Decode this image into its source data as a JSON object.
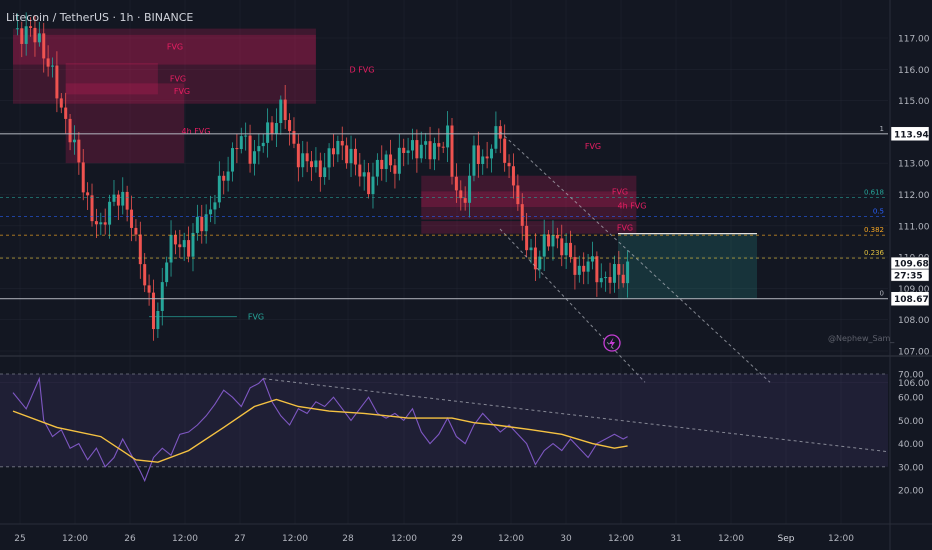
{
  "header": {
    "title": "Litecoin / TetherUS · 1h · BINANCE"
  },
  "watermark": "@Nephew_Sam_",
  "colors": {
    "bg": "#131722",
    "up": "#26a69a",
    "down": "#ef5350",
    "fvg_bear": "#e91e63",
    "fvg_bull": "#26a69a",
    "rsi": "#7e57c2",
    "rsi_ma": "#f5c242",
    "grid": "#2a2e39",
    "text": "#b2b5be",
    "fib": "#b2b5be"
  },
  "icons": {
    "alert": "lightning-icon"
  },
  "chart_data": [
    {
      "type": "candlestick",
      "name": "price",
      "ylim": [
        105.7,
        117.5
      ],
      "y_ticks": [
        "117.00",
        "116.00",
        "115.00",
        "114.00",
        "113.00",
        "112.00",
        "111.00",
        "110.00",
        "109.00",
        "108.00",
        "107.00",
        "106.00"
      ],
      "x_ticks": [
        "25",
        "12:00",
        "26",
        "12:00",
        "27",
        "12:00",
        "28",
        "12:00",
        "29",
        "12:00",
        "30",
        "12:00",
        "31",
        "12:00",
        "Sep",
        "12:00"
      ],
      "price_labels": [
        "113.94",
        "109.68",
        "27:35",
        "108.67"
      ],
      "close_path": [
        [
          0,
          117.3
        ],
        [
          6,
          117.0
        ],
        [
          8,
          116.2
        ],
        [
          10,
          115.2
        ],
        [
          13,
          114.0
        ],
        [
          16,
          112.3
        ],
        [
          18,
          111.4
        ],
        [
          20,
          110.7
        ],
        [
          22,
          111.8
        ],
        [
          23,
          112.0
        ],
        [
          24,
          111.9
        ],
        [
          25,
          111.7
        ],
        [
          27,
          111.2
        ],
        [
          29,
          110.0
        ],
        [
          30,
          109.0
        ],
        [
          31,
          108.5
        ],
        [
          32,
          108.0
        ],
        [
          33,
          108.3
        ],
        [
          34,
          109.2
        ],
        [
          35,
          110.0
        ],
        [
          36,
          110.3
        ],
        [
          38,
          110.6
        ],
        [
          40,
          110.2
        ],
        [
          41,
          110.6
        ],
        [
          42,
          111.0
        ],
        [
          43,
          111.2
        ],
        [
          45,
          111.5
        ],
        [
          47,
          112.2
        ],
        [
          49,
          113.0
        ],
        [
          51,
          113.6
        ],
        [
          53,
          113.7
        ],
        [
          54,
          113.4
        ],
        [
          55,
          113.3
        ],
        [
          57,
          113.7
        ],
        [
          59,
          114.2
        ],
        [
          61,
          114.8
        ],
        [
          62,
          114.5
        ],
        [
          63,
          113.8
        ],
        [
          65,
          113.3
        ],
        [
          67,
          113.0
        ],
        [
          69,
          112.8
        ],
        [
          71,
          113.0
        ],
        [
          73,
          113.4
        ],
        [
          75,
          113.6
        ],
        [
          77,
          113.2
        ],
        [
          79,
          112.6
        ],
        [
          81,
          112.4
        ],
        [
          83,
          112.8
        ],
        [
          85,
          113.1
        ],
        [
          87,
          113.0
        ],
        [
          89,
          113.3
        ],
        [
          91,
          113.6
        ],
        [
          93,
          113.5
        ],
        [
          95,
          113.3
        ],
        [
          97,
          113.7
        ],
        [
          99,
          113.8
        ],
        [
          100,
          112.6
        ],
        [
          102,
          111.8
        ],
        [
          104,
          112.4
        ],
        [
          105,
          113.3
        ],
        [
          107,
          113.1
        ],
        [
          109,
          113.6
        ],
        [
          111,
          113.9
        ],
        [
          112,
          113.1
        ],
        [
          114,
          112.6
        ],
        [
          115,
          111.4
        ],
        [
          116,
          110.8
        ],
        [
          118,
          110.2
        ],
        [
          119,
          109.8
        ],
        [
          121,
          110.3
        ],
        [
          123,
          110.8
        ],
        [
          125,
          110.3
        ],
        [
          127,
          109.9
        ],
        [
          129,
          109.6
        ],
        [
          131,
          109.8
        ],
        [
          133,
          109.5
        ],
        [
          135,
          109.3
        ],
        [
          137,
          109.4
        ],
        [
          139,
          109.5
        ],
        [
          140,
          109.7
        ]
      ],
      "fvg_zones": [
        {
          "label": "FVG",
          "x": [
            0,
            69
          ],
          "y": [
            116.15,
            117.3
          ],
          "kind": "bear"
        },
        {
          "label": "FVG",
          "x": [
            12,
            33
          ],
          "y": [
            115.2,
            116.2
          ],
          "kind": "bear"
        },
        {
          "label": "FVG",
          "x": [
            12,
            39
          ],
          "y": [
            115.05,
            115.55
          ],
          "kind": "bear"
        },
        {
          "label": "4h FVG",
          "x": [
            12,
            39
          ],
          "y": [
            113.0,
            115.05
          ],
          "kind": "bear"
        },
        {
          "label": "D FVG",
          "x": [
            0,
            69
          ],
          "y": [
            114.9,
            117.1
          ],
          "kind": "bear"
        },
        {
          "label": "FVG",
          "x": [
            93,
            113
          ],
          "y": [
            113.1,
            114.0
          ],
          "kind": "bear-label"
        },
        {
          "label": "FVG",
          "x": [
            93,
            142
          ],
          "y": [
            111.6,
            112.6
          ],
          "kind": "bear"
        },
        {
          "label": "4h FVG",
          "x": [
            93,
            142
          ],
          "y": [
            111.2,
            112.1
          ],
          "kind": "bear"
        },
        {
          "label": "FVG",
          "x": [
            93,
            142
          ],
          "y": [
            110.75,
            111.15
          ],
          "kind": "bear"
        },
        {
          "label": "FVG",
          "x": [
            31,
            51
          ],
          "y": [
            108.1,
            108.1
          ],
          "kind": "bull"
        }
      ],
      "fib": [
        {
          "ratio": "1",
          "price": 113.94
        },
        {
          "ratio": "0.618",
          "price": 111.9
        },
        {
          "ratio": "0.5",
          "price": 111.3
        },
        {
          "ratio": "0.382",
          "price": 110.7
        },
        {
          "ratio": "0.236",
          "price": 109.97
        },
        {
          "ratio": "0",
          "price": 108.67
        }
      ],
      "position_box": {
        "entry": 110.75,
        "target": 108.67,
        "stop": 110.75
      }
    },
    {
      "type": "line",
      "name": "RSI",
      "ylim": [
        17,
        73
      ],
      "y_ticks": [
        "70.00",
        "60.00",
        "50.00",
        "40.00",
        "30.00",
        "20.00"
      ],
      "bands": [
        70,
        30
      ],
      "rsi": [
        [
          0,
          62
        ],
        [
          3,
          55
        ],
        [
          6,
          68
        ],
        [
          7,
          50
        ],
        [
          9,
          43
        ],
        [
          11,
          46
        ],
        [
          13,
          38
        ],
        [
          15,
          40
        ],
        [
          17,
          33
        ],
        [
          19,
          38
        ],
        [
          21,
          30
        ],
        [
          23,
          34
        ],
        [
          25,
          42
        ],
        [
          27,
          35
        ],
        [
          29,
          28
        ],
        [
          30,
          24
        ],
        [
          32,
          34
        ],
        [
          34,
          38
        ],
        [
          36,
          35
        ],
        [
          38,
          44
        ],
        [
          40,
          45
        ],
        [
          42,
          48
        ],
        [
          44,
          52
        ],
        [
          46,
          57
        ],
        [
          48,
          63
        ],
        [
          50,
          60
        ],
        [
          52,
          56
        ],
        [
          54,
          64
        ],
        [
          56,
          66
        ],
        [
          57,
          68
        ],
        [
          59,
          58
        ],
        [
          61,
          52
        ],
        [
          63,
          48
        ],
        [
          65,
          55
        ],
        [
          67,
          53
        ],
        [
          69,
          58
        ],
        [
          71,
          56
        ],
        [
          73,
          60
        ],
        [
          75,
          55
        ],
        [
          77,
          50
        ],
        [
          79,
          55
        ],
        [
          81,
          60
        ],
        [
          83,
          53
        ],
        [
          85,
          51
        ],
        [
          87,
          53
        ],
        [
          89,
          50
        ],
        [
          91,
          55
        ],
        [
          93,
          45
        ],
        [
          95,
          40
        ],
        [
          97,
          44
        ],
        [
          99,
          51
        ],
        [
          101,
          43
        ],
        [
          103,
          40
        ],
        [
          105,
          48
        ],
        [
          107,
          53
        ],
        [
          109,
          49
        ],
        [
          111,
          45
        ],
        [
          113,
          48
        ],
        [
          115,
          44
        ],
        [
          117,
          40
        ],
        [
          119,
          31
        ],
        [
          121,
          37
        ],
        [
          123,
          40
        ],
        [
          125,
          37
        ],
        [
          127,
          42
        ],
        [
          129,
          38
        ],
        [
          131,
          34
        ],
        [
          133,
          40
        ],
        [
          135,
          42
        ],
        [
          137,
          44
        ],
        [
          139,
          42
        ],
        [
          140,
          43
        ]
      ],
      "rsi_ma": [
        [
          0,
          54
        ],
        [
          10,
          47
        ],
        [
          20,
          43
        ],
        [
          28,
          33
        ],
        [
          33,
          32
        ],
        [
          40,
          37
        ],
        [
          48,
          47
        ],
        [
          55,
          56
        ],
        [
          60,
          59
        ],
        [
          65,
          56
        ],
        [
          72,
          54
        ],
        [
          80,
          53
        ],
        [
          90,
          51
        ],
        [
          100,
          51
        ],
        [
          105,
          49
        ],
        [
          110,
          48
        ],
        [
          118,
          46
        ],
        [
          125,
          44
        ],
        [
          132,
          40
        ],
        [
          137,
          38
        ],
        [
          140,
          39
        ]
      ],
      "trendline_label": ""
    }
  ]
}
